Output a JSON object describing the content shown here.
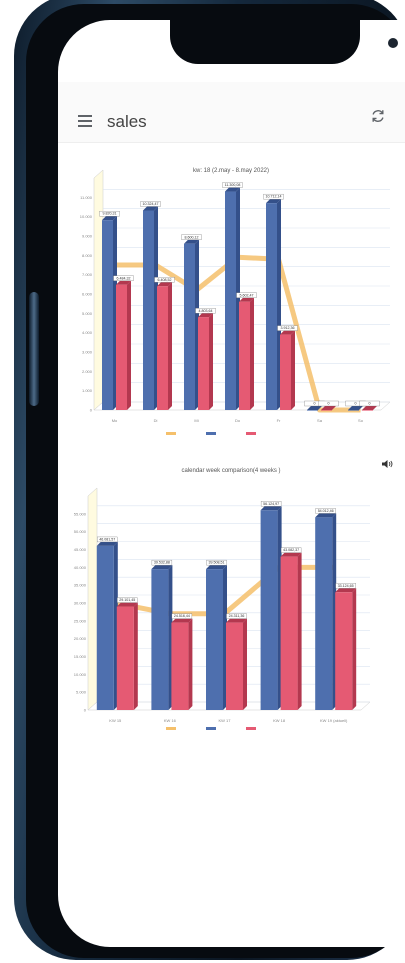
{
  "app": {
    "title": "sales",
    "menu_icon": "hamburger-menu-icon",
    "refresh_icon": "refresh-icon"
  },
  "colors": {
    "blue": "#4e6fae",
    "blue_side": "#34508a",
    "red": "#e55a73",
    "red_side": "#b3384f",
    "orange": "#f5c06b",
    "floor": "#fffbe0"
  },
  "chart_data": [
    {
      "type": "bar",
      "title": "kw: 18 (2.may - 8.may 2022)",
      "categories": [
        "Mo",
        "Di",
        "Mi",
        "Do",
        "Fr",
        "Sa",
        "So"
      ],
      "ylim": [
        0,
        12000
      ],
      "y_ticks": [
        0,
        1000,
        2000,
        3000,
        4000,
        5000,
        6000,
        7000,
        8000,
        9000,
        10000,
        11000
      ],
      "series": [
        {
          "name": "",
          "kind": "line",
          "color": "#f5c06b",
          "values": [
            7500,
            7500,
            6200,
            7900,
            7800,
            0,
            0
          ]
        },
        {
          "name": "",
          "kind": "bar",
          "color": "#4e6fae",
          "values": [
            9820,
            10320,
            8600,
            11300,
            10700,
            0,
            0
          ]
        },
        {
          "name": "",
          "kind": "bar",
          "color": "#e55a73",
          "values": [
            6480,
            6400,
            4800,
            5600,
            3900,
            0,
            0
          ]
        }
      ],
      "value_labels": {
        "blue": [
          "9.820,31",
          "10.324,47",
          "8.600,12",
          "11.300,08",
          "10.712,14",
          "0",
          "0"
        ],
        "red": [
          "6.484,32",
          "6.408,52",
          "4.803,64",
          "5.602,47",
          "3.912,36",
          "0",
          "0"
        ]
      },
      "grid": true,
      "legend_placement": "bottom"
    },
    {
      "type": "bar",
      "title": "calendar week comparison(4 weeks )",
      "categories": [
        "KW 15",
        "KW 16",
        "KW 17",
        "KW 18",
        "KW 19 (aktuell)"
      ],
      "ylim": [
        0,
        60000
      ],
      "y_ticks": [
        0,
        5000,
        10000,
        15000,
        20000,
        25000,
        30000,
        35000,
        40000,
        45000,
        50000,
        55000
      ],
      "series": [
        {
          "name": "",
          "kind": "line",
          "color": "#f5c06b",
          "values": [
            30000,
            27000,
            27000,
            40000,
            40000
          ]
        },
        {
          "name": "",
          "kind": "bar",
          "color": "#4e6fae",
          "values": [
            46000,
            39500,
            39500,
            56000,
            54000
          ]
        },
        {
          "name": "",
          "kind": "bar",
          "color": "#e55a73",
          "values": [
            29000,
            24500,
            24500,
            43000,
            33000
          ]
        }
      ],
      "value_labels": {
        "blue": [
          "46.081,57",
          "39.532,88",
          "39.508,51",
          "56.124,97",
          "54.012,46"
        ],
        "red": [
          "29.101,45",
          "24.516,44",
          "24.311,36",
          "43.082,37",
          "33.124,65"
        ]
      },
      "grid": true,
      "legend_placement": "bottom"
    }
  ]
}
